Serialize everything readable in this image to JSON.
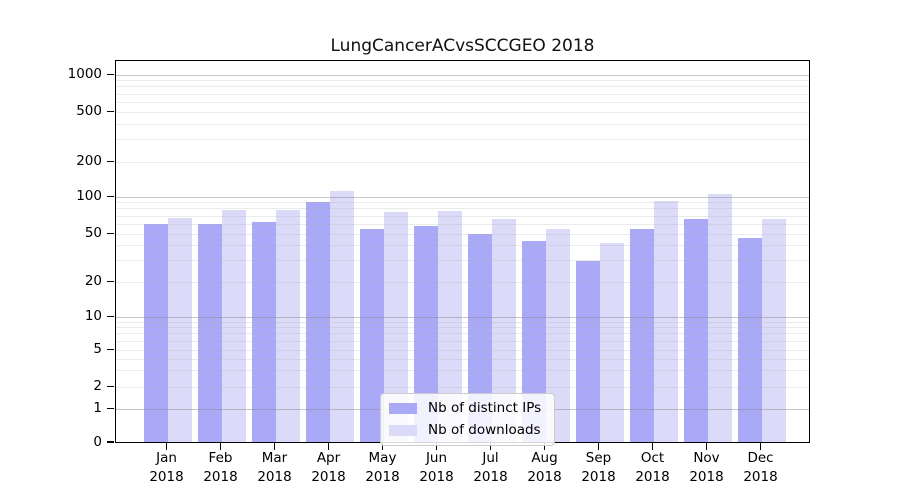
{
  "chart_data": {
    "type": "bar",
    "title": "LungCancerACvsSCCGEO 2018",
    "categories": [
      "Jan",
      "Feb",
      "Mar",
      "Apr",
      "May",
      "Jun",
      "Jul",
      "Aug",
      "Sep",
      "Oct",
      "Nov",
      "Dec"
    ],
    "category_year": "2018",
    "series": [
      {
        "name": "Nb of distinct IPs",
        "color": "#a9a9f7",
        "values": [
          60,
          60,
          63,
          91,
          55,
          58,
          50,
          44,
          30,
          55,
          66,
          46
        ]
      },
      {
        "name": "Nb of downloads",
        "color": "#dbdbf9",
        "values": [
          68,
          78,
          78,
          112,
          76,
          77,
          66,
          55,
          42,
          93,
          106,
          66
        ]
      }
    ],
    "yscale": "symlog",
    "yticks": [
      0,
      1,
      2,
      5,
      10,
      20,
      50,
      100,
      200,
      500,
      1000
    ],
    "ylim": [
      0,
      1200
    ],
    "grid": true,
    "legend_position": "lower center"
  },
  "colors": {
    "major_grid": "#c6c6c6",
    "minor_grid": "#e7e7e7",
    "axis": "#000000",
    "background": "#ffffff"
  }
}
